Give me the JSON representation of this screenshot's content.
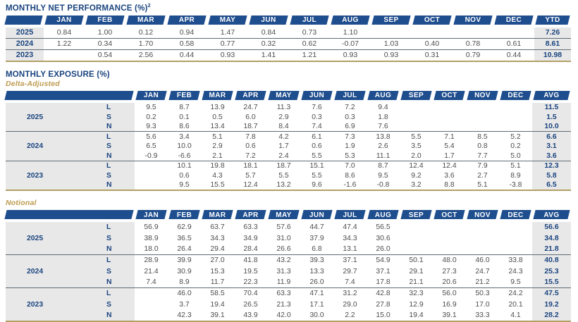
{
  "titles": {
    "performance": "MONTHLY NET PERFORMANCE (%)",
    "performance_sup": "2",
    "exposure": "MONTHLY EXPOSURE (%)",
    "delta_adjusted": "Delta-Adjusted",
    "notional": "Notional"
  },
  "colors": {
    "header_blue": "#1f4e8e",
    "title_blue": "#1a447f",
    "gold_label": "#bd9a4d",
    "gold_line": "#b2a065",
    "label_bg_gray": "#e8e8e8",
    "value_gray": "#4d4d4d"
  },
  "months": [
    "JAN",
    "FEB",
    "MAR",
    "APR",
    "MAY",
    "JUN",
    "JUL",
    "AUG",
    "SEP",
    "OCT",
    "NOV",
    "DEC"
  ],
  "performance_table": {
    "last_col": "YTD",
    "rows": [
      {
        "year": "2025",
        "values": [
          "0.84",
          "1.00",
          "0.12",
          "0.94",
          "1.47",
          "0.84",
          "0.73",
          "1.10",
          "",
          "",
          "",
          ""
        ],
        "total": "7.26"
      },
      {
        "year": "2024",
        "values": [
          "1.22",
          "0.34",
          "1.70",
          "0.58",
          "0.77",
          "0.32",
          "0.62",
          "-0.07",
          "1.03",
          "0.40",
          "0.78",
          "0.61"
        ],
        "total": "8.61"
      },
      {
        "year": "2023",
        "values": [
          "",
          "0.54",
          "2.56",
          "0.44",
          "0.93",
          "1.41",
          "1.21",
          "0.93",
          "0.93",
          "0.31",
          "0.79",
          "0.44"
        ],
        "total": "10.98"
      }
    ]
  },
  "delta_adjusted_table": {
    "last_col": "AVG",
    "groups": [
      {
        "year": "2025",
        "rows": [
          {
            "label": "L",
            "values": [
              "9.5",
              "8.7",
              "13.9",
              "24.7",
              "11.3",
              "7.6",
              "7.2",
              "9.4",
              "",
              "",
              "",
              ""
            ],
            "total": "11.5"
          },
          {
            "label": "S",
            "values": [
              "0.2",
              "0.1",
              "0.5",
              "6.0",
              "2.9",
              "0.3",
              "0.3",
              "1.8",
              "",
              "",
              "",
              ""
            ],
            "total": "1.5"
          },
          {
            "label": "N",
            "values": [
              "9.3",
              "8.6",
              "13.4",
              "18.7",
              "8.4",
              "7.4",
              "6.9",
              "7.6",
              "",
              "",
              "",
              ""
            ],
            "total": "10.0"
          }
        ]
      },
      {
        "year": "2024",
        "rows": [
          {
            "label": "L",
            "values": [
              "5.6",
              "3.4",
              "5.1",
              "7.8",
              "4.2",
              "6.1",
              "7.3",
              "13.8",
              "5.5",
              "7.1",
              "8.5",
              "5.2"
            ],
            "total": "6.6"
          },
          {
            "label": "S",
            "values": [
              "6.5",
              "10.0",
              "2.9",
              "0.6",
              "1.7",
              "0.6",
              "1.9",
              "2.6",
              "3.5",
              "5.4",
              "0.8",
              "0.2"
            ],
            "total": "3.1"
          },
          {
            "label": "N",
            "values": [
              "-0.9",
              "-6.6",
              "2.1",
              "7.2",
              "2.4",
              "5.5",
              "5.3",
              "11.1",
              "2.0",
              "1.7",
              "7.7",
              "5.0"
            ],
            "total": "3.6"
          }
        ]
      },
      {
        "year": "2023",
        "rows": [
          {
            "label": "L",
            "values": [
              "",
              "10.1",
              "19.8",
              "18.1",
              "18.7",
              "15.1",
              "7.0",
              "8.7",
              "12.4",
              "12.4",
              "7.9",
              "5.1"
            ],
            "total": "12.3"
          },
          {
            "label": "S",
            "values": [
              "",
              "0.6",
              "4.3",
              "5.7",
              "5.5",
              "5.5",
              "8.6",
              "9.5",
              "9.2",
              "3.6",
              "2.7",
              "8.9"
            ],
            "total": "5.8"
          },
          {
            "label": "N",
            "values": [
              "",
              "9.5",
              "15.5",
              "12.4",
              "13.2",
              "9.6",
              "-1.6",
              "-0.8",
              "3.2",
              "8.8",
              "5.1",
              "-3.8"
            ],
            "total": "6.5"
          }
        ]
      }
    ]
  },
  "notional_table": {
    "last_col": "AVG",
    "groups": [
      {
        "year": "2025",
        "rows": [
          {
            "label": "L",
            "values": [
              "56.9",
              "62.9",
              "63.7",
              "63.3",
              "57.6",
              "44.7",
              "47.4",
              "56.5",
              "",
              "",
              "",
              ""
            ],
            "total": "56.6"
          },
          {
            "label": "S",
            "values": [
              "38.9",
              "36.5",
              "34.3",
              "34.9",
              "31.0",
              "37.9",
              "34.3",
              "30.6",
              "",
              "",
              "",
              ""
            ],
            "total": "34.8"
          },
          {
            "label": "N",
            "values": [
              "18.0",
              "26.4",
              "29.4",
              "28.4",
              "26.6",
              "6.8",
              "13.1",
              "26.0",
              "",
              "",
              "",
              ""
            ],
            "total": "21.8"
          }
        ]
      },
      {
        "year": "2024",
        "rows": [
          {
            "label": "L",
            "values": [
              "28.9",
              "39.9",
              "27.0",
              "41.8",
              "43.2",
              "39.3",
              "37.1",
              "54.9",
              "50.1",
              "48.0",
              "46.0",
              "33.8"
            ],
            "total": "40.8"
          },
          {
            "label": "S",
            "values": [
              "21.4",
              "30.9",
              "15.3",
              "19.5",
              "31.3",
              "13.3",
              "29.7",
              "37.1",
              "29.1",
              "27.3",
              "24.7",
              "24.3"
            ],
            "total": "25.3"
          },
          {
            "label": "N",
            "values": [
              "7.4",
              "8.9",
              "11.7",
              "22.3",
              "11.9",
              "26.0",
              "7.4",
              "17.8",
              "21.1",
              "20.6",
              "21.2",
              "9.5"
            ],
            "total": "15.5"
          }
        ]
      },
      {
        "year": "2023",
        "rows": [
          {
            "label": "L",
            "values": [
              "",
              "46.0",
              "58.5",
              "70.4",
              "63.3",
              "47.1",
              "31.2",
              "42.8",
              "32.3",
              "56.0",
              "50.3",
              "24.2"
            ],
            "total": "47.5"
          },
          {
            "label": "S",
            "values": [
              "",
              "3.7",
              "19.4",
              "26.5",
              "21.3",
              "17.1",
              "29.0",
              "27.8",
              "12.9",
              "16.9",
              "17.0",
              "20.1"
            ],
            "total": "19.2"
          },
          {
            "label": "N",
            "values": [
              "",
              "42.3",
              "39.1",
              "43.9",
              "42.0",
              "30.0",
              "2.2",
              "15.0",
              "19.4",
              "39.1",
              "33.3",
              "4.1"
            ],
            "total": "28.2"
          }
        ]
      }
    ]
  }
}
